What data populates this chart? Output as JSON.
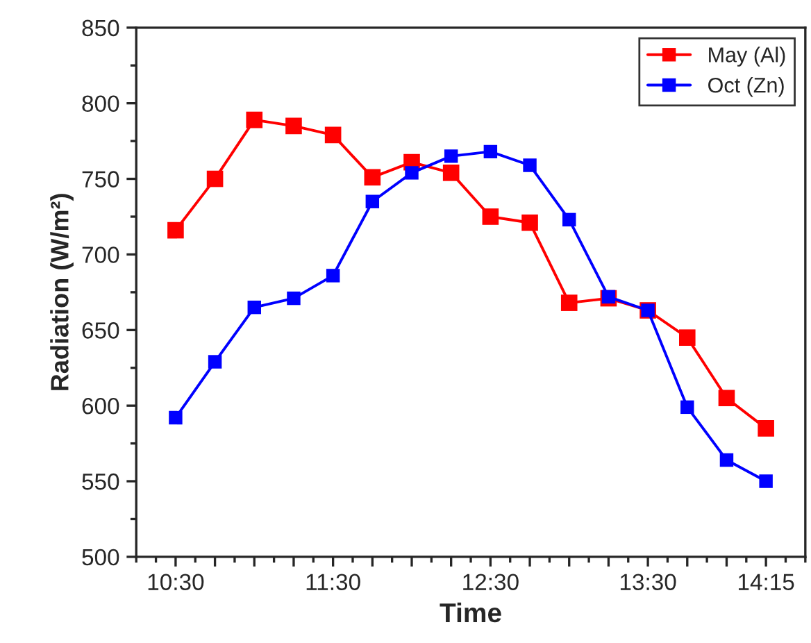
{
  "chart_data": {
    "type": "line",
    "xlabel": "Time",
    "ylabel": "Radiation (W/m²)",
    "x": [
      10.5,
      10.75,
      11.0,
      11.25,
      11.5,
      11.75,
      12.0,
      12.25,
      12.5,
      12.75,
      13.0,
      13.25,
      13.5,
      13.75,
      14.0,
      14.25
    ],
    "series": [
      {
        "name": "May (Al)",
        "color": "#ff0000",
        "values": [
          716,
          750,
          789,
          785,
          779,
          751,
          761,
          754,
          725,
          721,
          668,
          671,
          663,
          645,
          605,
          585
        ]
      },
      {
        "name": "Oct (Zn)",
        "color": "#0000ff",
        "values": [
          592,
          629,
          665,
          671,
          686,
          735,
          754,
          765,
          768,
          759,
          723,
          672,
          663,
          599,
          564,
          550
        ]
      }
    ],
    "xlim": [
      10.25,
      14.5
    ],
    "xticks": [
      {
        "value": 10.5,
        "label": "10:30"
      },
      {
        "value": 10.75,
        "label": null
      },
      {
        "value": 11.0,
        "label": null
      },
      {
        "value": 11.25,
        "label": null
      },
      {
        "value": 11.5,
        "label": "11:30"
      },
      {
        "value": 11.75,
        "label": null
      },
      {
        "value": 12.0,
        "label": null
      },
      {
        "value": 12.25,
        "label": null
      },
      {
        "value": 12.5,
        "label": "12:30"
      },
      {
        "value": 12.75,
        "label": null
      },
      {
        "value": 13.0,
        "label": null
      },
      {
        "value": 13.25,
        "label": null
      },
      {
        "value": 13.5,
        "label": "13:30"
      },
      {
        "value": 13.75,
        "label": null
      },
      {
        "value": 14.0,
        "label": null
      },
      {
        "value": 14.25,
        "label": "14:15"
      }
    ],
    "ylim": [
      500,
      850
    ],
    "yticks": [
      500,
      550,
      600,
      650,
      700,
      750,
      800,
      850
    ],
    "marker": "square",
    "line_style": "solid",
    "legend": "top right",
    "grid": false
  }
}
